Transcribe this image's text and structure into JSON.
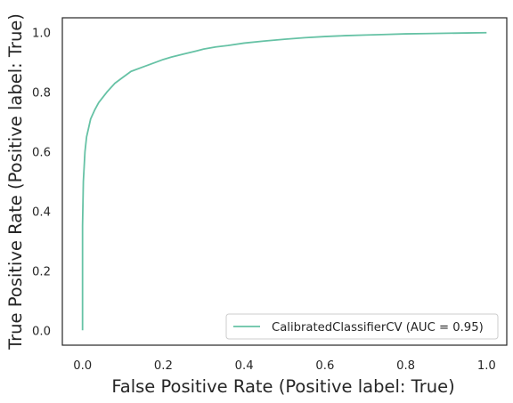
{
  "chart_data": {
    "type": "line",
    "title": "",
    "xlabel": "False Positive Rate (Positive label: True)",
    "ylabel": "True Positive Rate (Positive label: True)",
    "xlim": [
      -0.05,
      1.05
    ],
    "ylim": [
      -0.05,
      1.05
    ],
    "xticks": [
      "0.0",
      "0.2",
      "0.4",
      "0.6",
      "0.8",
      "1.0"
    ],
    "yticks": [
      "0.0",
      "0.2",
      "0.4",
      "0.6",
      "0.8",
      "1.0"
    ],
    "grid": false,
    "legend_position": "lower-right",
    "series": [
      {
        "name": "CalibratedClassifierCV (AUC = 0.95)",
        "color": "#66c2a5",
        "x": [
          0.0,
          0.0,
          0.002,
          0.004,
          0.006,
          0.01,
          0.015,
          0.02,
          0.03,
          0.04,
          0.06,
          0.08,
          0.1,
          0.12,
          0.15,
          0.18,
          0.2,
          0.22,
          0.25,
          0.28,
          0.3,
          0.33,
          0.36,
          0.4,
          0.45,
          0.5,
          0.55,
          0.6,
          0.65,
          0.7,
          0.75,
          0.8,
          0.85,
          0.9,
          0.95,
          1.0
        ],
        "y": [
          0.0,
          0.35,
          0.5,
          0.55,
          0.6,
          0.65,
          0.68,
          0.71,
          0.74,
          0.765,
          0.8,
          0.83,
          0.85,
          0.87,
          0.885,
          0.9,
          0.91,
          0.918,
          0.928,
          0.938,
          0.945,
          0.952,
          0.957,
          0.965,
          0.972,
          0.978,
          0.983,
          0.987,
          0.99,
          0.992,
          0.994,
          0.996,
          0.997,
          0.998,
          0.999,
          1.0
        ]
      }
    ]
  }
}
